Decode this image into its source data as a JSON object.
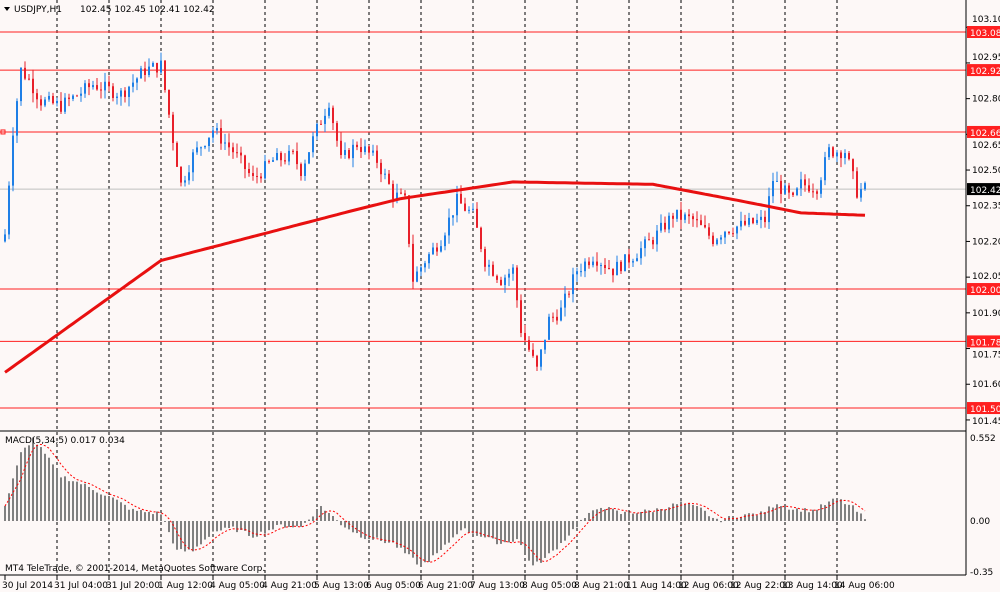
{
  "header": {
    "symbol": "USDJPY,H1",
    "ohlc": "102.45 102.45 102.41 102.42"
  },
  "macd": {
    "label": "MACD(5,34,5) 0.017 0.034",
    "ticks": [
      "0.552",
      "0.00",
      "-0.35"
    ]
  },
  "footer": {
    "copyright": "MT4 TeleTrade, © 2001-2014, MetaQuotes Software Corp."
  },
  "colors": {
    "background": "#fdf8f7",
    "bull": "#1e7fe6",
    "bear": "#e8202a",
    "level": "#ff2020",
    "ma": "#e81010",
    "hist": "#808080",
    "signal": "#ff0000"
  },
  "chart_data": {
    "type": "candlestick",
    "title": "USDJPY,H1",
    "ylim": [
      101.4,
      103.15
    ],
    "price_ticks": [
      "103.10",
      "102.95",
      "102.80",
      "102.65",
      "102.50",
      "102.35",
      "102.20",
      "102.05",
      "101.90",
      "101.75",
      "101.60",
      "101.45"
    ],
    "levels": [
      {
        "label": "103.08",
        "value": 103.08
      },
      {
        "label": "102.92",
        "value": 102.92
      },
      {
        "label": "102.66",
        "value": 102.66
      },
      {
        "label": "102.00",
        "value": 102.0
      },
      {
        "label": "101.78",
        "value": 101.78
      },
      {
        "label": "101.50",
        "value": 101.5
      }
    ],
    "current_price": {
      "label": "102.42",
      "value": 102.42
    },
    "x_labels": [
      "30 Jul 2014",
      "31 Jul 04:00",
      "31 Jul 20:00",
      "1 Aug 12:00",
      "4 Aug 05:00",
      "4 Aug 21:00",
      "5 Aug 13:00",
      "6 Aug 05:00",
      "6 Aug 21:00",
      "7 Aug 13:00",
      "8 Aug 05:00",
      "8 Aug 21:00",
      "11 Aug 14:00",
      "12 Aug 06:00",
      "12 Aug 22:00",
      "13 Aug 14:00",
      "14 Aug 06:00"
    ],
    "bars_per_label": 13,
    "bar_count": 216,
    "close_path": [
      [
        0,
        102.23
      ],
      [
        2,
        102.67
      ],
      [
        4,
        102.92
      ],
      [
        6,
        102.88
      ],
      [
        9,
        102.79
      ],
      [
        14,
        102.77
      ],
      [
        22,
        102.86
      ],
      [
        29,
        102.82
      ],
      [
        35,
        102.92
      ],
      [
        39,
        102.94
      ],
      [
        42,
        102.63
      ],
      [
        44,
        102.44
      ],
      [
        47,
        102.56
      ],
      [
        52,
        102.67
      ],
      [
        57,
        102.58
      ],
      [
        62,
        102.46
      ],
      [
        67,
        102.54
      ],
      [
        72,
        102.56
      ],
      [
        74,
        102.5
      ],
      [
        78,
        102.67
      ],
      [
        81,
        102.79
      ],
      [
        84,
        102.54
      ],
      [
        88,
        102.61
      ],
      [
        93,
        102.54
      ],
      [
        97,
        102.4
      ],
      [
        100,
        102.37
      ],
      [
        102,
        102.04
      ],
      [
        105,
        102.12
      ],
      [
        109,
        102.21
      ],
      [
        113,
        102.37
      ],
      [
        117,
        102.31
      ],
      [
        120,
        102.12
      ],
      [
        124,
        102.04
      ],
      [
        127,
        102.08
      ],
      [
        129,
        101.83
      ],
      [
        133,
        101.66
      ],
      [
        136,
        101.87
      ],
      [
        139,
        101.91
      ],
      [
        143,
        102.08
      ],
      [
        147,
        102.14
      ],
      [
        152,
        102.08
      ],
      [
        157,
        102.14
      ],
      [
        162,
        102.21
      ],
      [
        167,
        102.31
      ],
      [
        172,
        102.29
      ],
      [
        177,
        102.21
      ],
      [
        180,
        102.25
      ],
      [
        185,
        102.27
      ],
      [
        190,
        102.29
      ],
      [
        192,
        102.46
      ],
      [
        197,
        102.37
      ],
      [
        199,
        102.44
      ],
      [
        203,
        102.43
      ],
      [
        206,
        102.58
      ],
      [
        210,
        102.58
      ],
      [
        213,
        102.41
      ],
      [
        215,
        102.42
      ]
    ],
    "ma_path": [
      [
        0,
        101.65
      ],
      [
        39,
        102.12
      ],
      [
        87,
        102.33
      ],
      [
        99,
        102.38
      ],
      [
        127,
        102.45
      ],
      [
        162,
        102.44
      ],
      [
        184,
        102.37
      ],
      [
        199,
        102.32
      ],
      [
        215,
        102.31
      ]
    ],
    "macd_hist_path": [
      [
        0,
        0.1
      ],
      [
        4,
        0.45
      ],
      [
        7,
        0.55
      ],
      [
        9,
        0.48
      ],
      [
        14,
        0.3
      ],
      [
        19,
        0.25
      ],
      [
        27,
        0.15
      ],
      [
        32,
        0.07
      ],
      [
        39,
        0.05
      ],
      [
        43,
        -0.2
      ],
      [
        47,
        -0.2
      ],
      [
        52,
        -0.07
      ],
      [
        57,
        -0.05
      ],
      [
        62,
        -0.1
      ],
      [
        69,
        -0.03
      ],
      [
        74,
        -0.04
      ],
      [
        79,
        0.1
      ],
      [
        84,
        -0.02
      ],
      [
        89,
        -0.1
      ],
      [
        97,
        -0.15
      ],
      [
        104,
        -0.3
      ],
      [
        109,
        -0.2
      ],
      [
        114,
        -0.05
      ],
      [
        119,
        -0.1
      ],
      [
        124,
        -0.15
      ],
      [
        128,
        -0.12
      ],
      [
        132,
        -0.3
      ],
      [
        135,
        -0.25
      ],
      [
        139,
        -0.15
      ],
      [
        144,
        0.0
      ],
      [
        149,
        0.1
      ],
      [
        154,
        0.05
      ],
      [
        162,
        0.07
      ],
      [
        169,
        0.12
      ],
      [
        174,
        0.08
      ],
      [
        178,
        0.0
      ],
      [
        184,
        0.04
      ],
      [
        189,
        0.05
      ],
      [
        193,
        0.12
      ],
      [
        197,
        0.08
      ],
      [
        202,
        0.07
      ],
      [
        208,
        0.15
      ],
      [
        212,
        0.09
      ],
      [
        215,
        0.01
      ]
    ],
    "macd_ylim": [
      -0.35,
      0.552
    ]
  }
}
